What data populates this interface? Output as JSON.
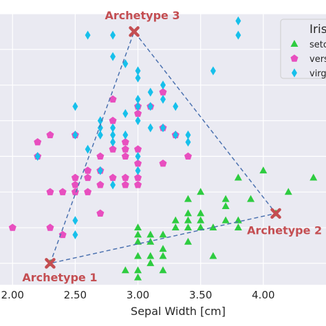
{
  "chart_data": {
    "type": "scatter",
    "xlabel": "Sepal Width [cm]",
    "xlim": [
      1.9,
      4.5
    ],
    "ylim": [
      4.2,
      8.0
    ],
    "x_ticks": [
      "2.00",
      "2.50",
      "3.00",
      "3.50",
      "4.00"
    ],
    "x_tick_values": [
      2.0,
      2.5,
      3.0,
      3.5,
      4.0
    ],
    "y_grid_values": [
      4.5,
      5.0,
      5.5,
      6.0,
      6.5,
      7.0,
      7.5,
      8.0
    ],
    "grid": true,
    "legend": {
      "title": "Iris",
      "placement": "top-right",
      "entries": [
        "setosa",
        "versicolor",
        "virginica"
      ]
    },
    "series": [
      {
        "name": "setosa",
        "marker": "triangle",
        "color": "#2ecc40",
        "points": [
          [
            2.3,
            4.5
          ],
          [
            2.9,
            4.4
          ],
          [
            3.0,
            4.4
          ],
          [
            3.0,
            4.3
          ],
          [
            3.2,
            4.4
          ],
          [
            3.2,
            4.6
          ],
          [
            3.1,
            4.6
          ],
          [
            3.0,
            4.6
          ],
          [
            3.0,
            4.8
          ],
          [
            3.0,
            4.9
          ],
          [
            3.1,
            4.8
          ],
          [
            3.1,
            4.9
          ],
          [
            3.2,
            4.7
          ],
          [
            3.2,
            4.9
          ],
          [
            3.3,
            5.0
          ],
          [
            3.3,
            5.1
          ],
          [
            3.4,
            4.8
          ],
          [
            3.4,
            5.0
          ],
          [
            3.4,
            5.1
          ],
          [
            3.4,
            5.2
          ],
          [
            3.4,
            5.4
          ],
          [
            3.5,
            5.0
          ],
          [
            3.5,
            5.1
          ],
          [
            3.5,
            5.2
          ],
          [
            3.5,
            5.5
          ],
          [
            3.6,
            4.6
          ],
          [
            3.6,
            5.0
          ],
          [
            3.7,
            5.1
          ],
          [
            3.7,
            5.3
          ],
          [
            3.7,
            5.4
          ],
          [
            3.8,
            5.1
          ],
          [
            3.8,
            5.7
          ],
          [
            3.9,
            5.4
          ],
          [
            4.0,
            5.8
          ],
          [
            4.1,
            5.2
          ],
          [
            4.2,
            5.5
          ],
          [
            4.4,
            5.7
          ],
          [
            3.1,
            4.5
          ],
          [
            3.0,
            5.0
          ],
          [
            3.8,
            5.0
          ]
        ]
      },
      {
        "name": "versicolor",
        "marker": "pentagon",
        "color": "#e84fbf",
        "points": [
          [
            2.0,
            5.0
          ],
          [
            2.2,
            6.0
          ],
          [
            2.2,
            6.2
          ],
          [
            2.3,
            5.5
          ],
          [
            2.3,
            5.0
          ],
          [
            2.3,
            6.3
          ],
          [
            2.4,
            5.5
          ],
          [
            2.4,
            4.9
          ],
          [
            2.5,
            5.5
          ],
          [
            2.5,
            5.6
          ],
          [
            2.5,
            5.7
          ],
          [
            2.5,
            6.3
          ],
          [
            2.6,
            5.5
          ],
          [
            2.6,
            5.8
          ],
          [
            2.6,
            5.7
          ],
          [
            2.7,
            5.6
          ],
          [
            2.7,
            5.8
          ],
          [
            2.7,
            6.0
          ],
          [
            2.7,
            5.2
          ],
          [
            2.8,
            5.7
          ],
          [
            2.8,
            6.1
          ],
          [
            2.8,
            6.5
          ],
          [
            2.8,
            6.8
          ],
          [
            2.9,
            5.6
          ],
          [
            2.9,
            5.7
          ],
          [
            2.9,
            6.0
          ],
          [
            2.9,
            6.1
          ],
          [
            2.9,
            6.2
          ],
          [
            3.0,
            5.6
          ],
          [
            3.0,
            6.1
          ],
          [
            3.0,
            6.6
          ],
          [
            3.0,
            6.7
          ],
          [
            3.0,
            5.9
          ],
          [
            3.1,
            6.7
          ],
          [
            3.2,
            6.9
          ],
          [
            3.2,
            6.4
          ],
          [
            3.2,
            5.9
          ],
          [
            3.3,
            6.3
          ],
          [
            3.4,
            6.0
          ],
          [
            3.0,
            5.7
          ]
        ]
      },
      {
        "name": "virginica",
        "marker": "diamond",
        "color": "#17c0eb",
        "points": [
          [
            2.2,
            6.0
          ],
          [
            2.5,
            4.9
          ],
          [
            2.5,
            5.1
          ],
          [
            2.5,
            6.3
          ],
          [
            2.5,
            6.7
          ],
          [
            2.6,
            7.7
          ],
          [
            2.6,
            6.1
          ],
          [
            2.7,
            5.8
          ],
          [
            2.7,
            6.3
          ],
          [
            2.7,
            6.4
          ],
          [
            2.8,
            5.6
          ],
          [
            2.8,
            6.2
          ],
          [
            2.8,
            6.3
          ],
          [
            2.8,
            6.4
          ],
          [
            2.8,
            7.4
          ],
          [
            2.8,
            7.7
          ],
          [
            2.9,
            6.3
          ],
          [
            2.9,
            7.3
          ],
          [
            3.0,
            5.8
          ],
          [
            3.0,
            6.5
          ],
          [
            3.0,
            6.8
          ],
          [
            3.0,
            7.1
          ],
          [
            3.0,
            7.2
          ],
          [
            3.0,
            6.0
          ],
          [
            3.1,
            6.7
          ],
          [
            3.1,
            6.9
          ],
          [
            3.2,
            6.4
          ],
          [
            3.2,
            6.8
          ],
          [
            3.2,
            7.0
          ],
          [
            3.3,
            6.3
          ],
          [
            3.3,
            6.7
          ],
          [
            3.4,
            6.2
          ],
          [
            3.4,
            6.3
          ],
          [
            3.6,
            7.2
          ],
          [
            3.8,
            7.7
          ],
          [
            3.8,
            7.9
          ],
          [
            3.0,
            6.7
          ],
          [
            2.9,
            6.6
          ],
          [
            3.1,
            6.4
          ],
          [
            2.7,
            6.5
          ]
        ]
      }
    ],
    "archetypes": [
      {
        "label": "Archetype 1",
        "x": 2.3,
        "y": 4.5
      },
      {
        "label": "Archetype 3",
        "x": 2.97,
        "y": 7.75
      },
      {
        "label": "Archetype 2",
        "x": 4.1,
        "y": 5.2
      }
    ],
    "archetype_color": "#c44e52",
    "hull_color": "#4c72b0"
  }
}
